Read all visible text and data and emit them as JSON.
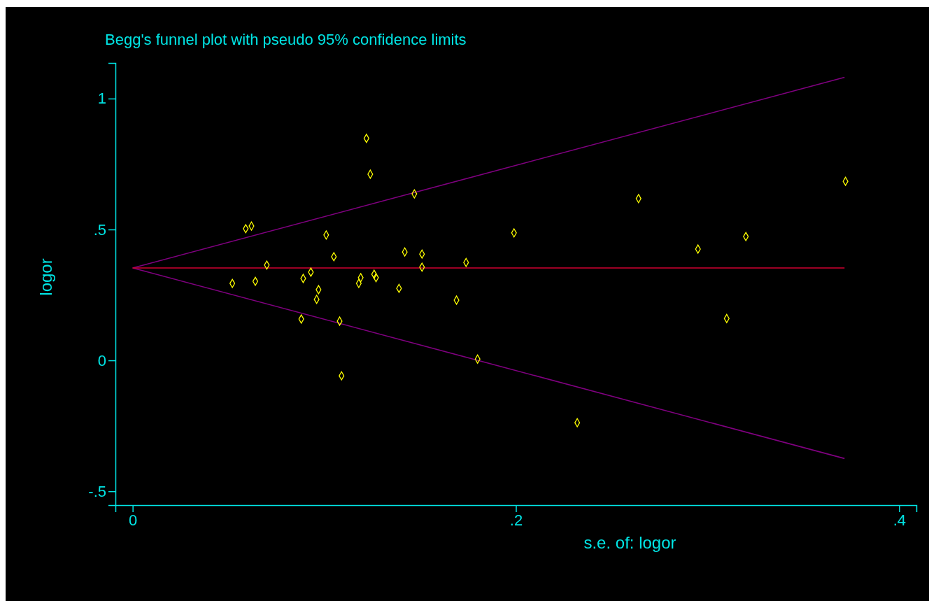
{
  "chart_data": {
    "type": "scatter",
    "title": "Begg's funnel plot with pseudo 95% confidence limits",
    "xlabel": "s.e. of: logor",
    "ylabel": "logor",
    "xlim": [
      -0.009,
      0.409
    ],
    "ylim": [
      -0.553,
      1.136
    ],
    "xticks": [
      0,
      {
        "value": 0.2,
        "label": ".2"
      },
      {
        "value": 0.4,
        "label": ".4"
      }
    ],
    "yticks": [
      {
        "value": -0.5,
        "label": "-.5"
      },
      0,
      {
        "value": 0.5,
        "label": ".5"
      },
      1
    ],
    "series": [
      {
        "marker": "diamond",
        "color": "#ffff00",
        "x": [
          0.052,
          0.059,
          0.062,
          0.064,
          0.07,
          0.088,
          0.089,
          0.093,
          0.096,
          0.097,
          0.101,
          0.105,
          0.108,
          0.109,
          0.118,
          0.119,
          0.122,
          0.124,
          0.126,
          0.127,
          0.139,
          0.142,
          0.147,
          0.151,
          0.151,
          0.169,
          0.174,
          0.18,
          0.199,
          0.232,
          0.264,
          0.295,
          0.31,
          0.32,
          0.372
        ],
        "values": [
          0.294,
          0.503,
          0.513,
          0.302,
          0.364,
          0.158,
          0.313,
          0.337,
          0.233,
          0.27,
          0.479,
          0.396,
          0.15,
          -0.059,
          0.294,
          0.316,
          0.848,
          0.711,
          0.329,
          0.316,
          0.275,
          0.414,
          0.636,
          0.406,
          0.356,
          0.23,
          0.374,
          0.005,
          0.487,
          -0.238,
          0.618,
          0.425,
          0.16,
          0.473,
          0.684
        ]
      },
      {
        "type": "line",
        "marker": "none",
        "color": "#800080",
        "x": [
          0,
          0.3715
        ],
        "values": [
          0.353,
          1.081
        ]
      },
      {
        "type": "line",
        "marker": "none",
        "color": "#800080",
        "x": [
          0,
          0.3715
        ],
        "values": [
          0.353,
          -0.375
        ]
      },
      {
        "type": "line",
        "marker": "none",
        "color": "#d00030",
        "x": [
          0,
          0.3715
        ],
        "values": [
          0.353,
          0.353
        ]
      }
    ]
  }
}
